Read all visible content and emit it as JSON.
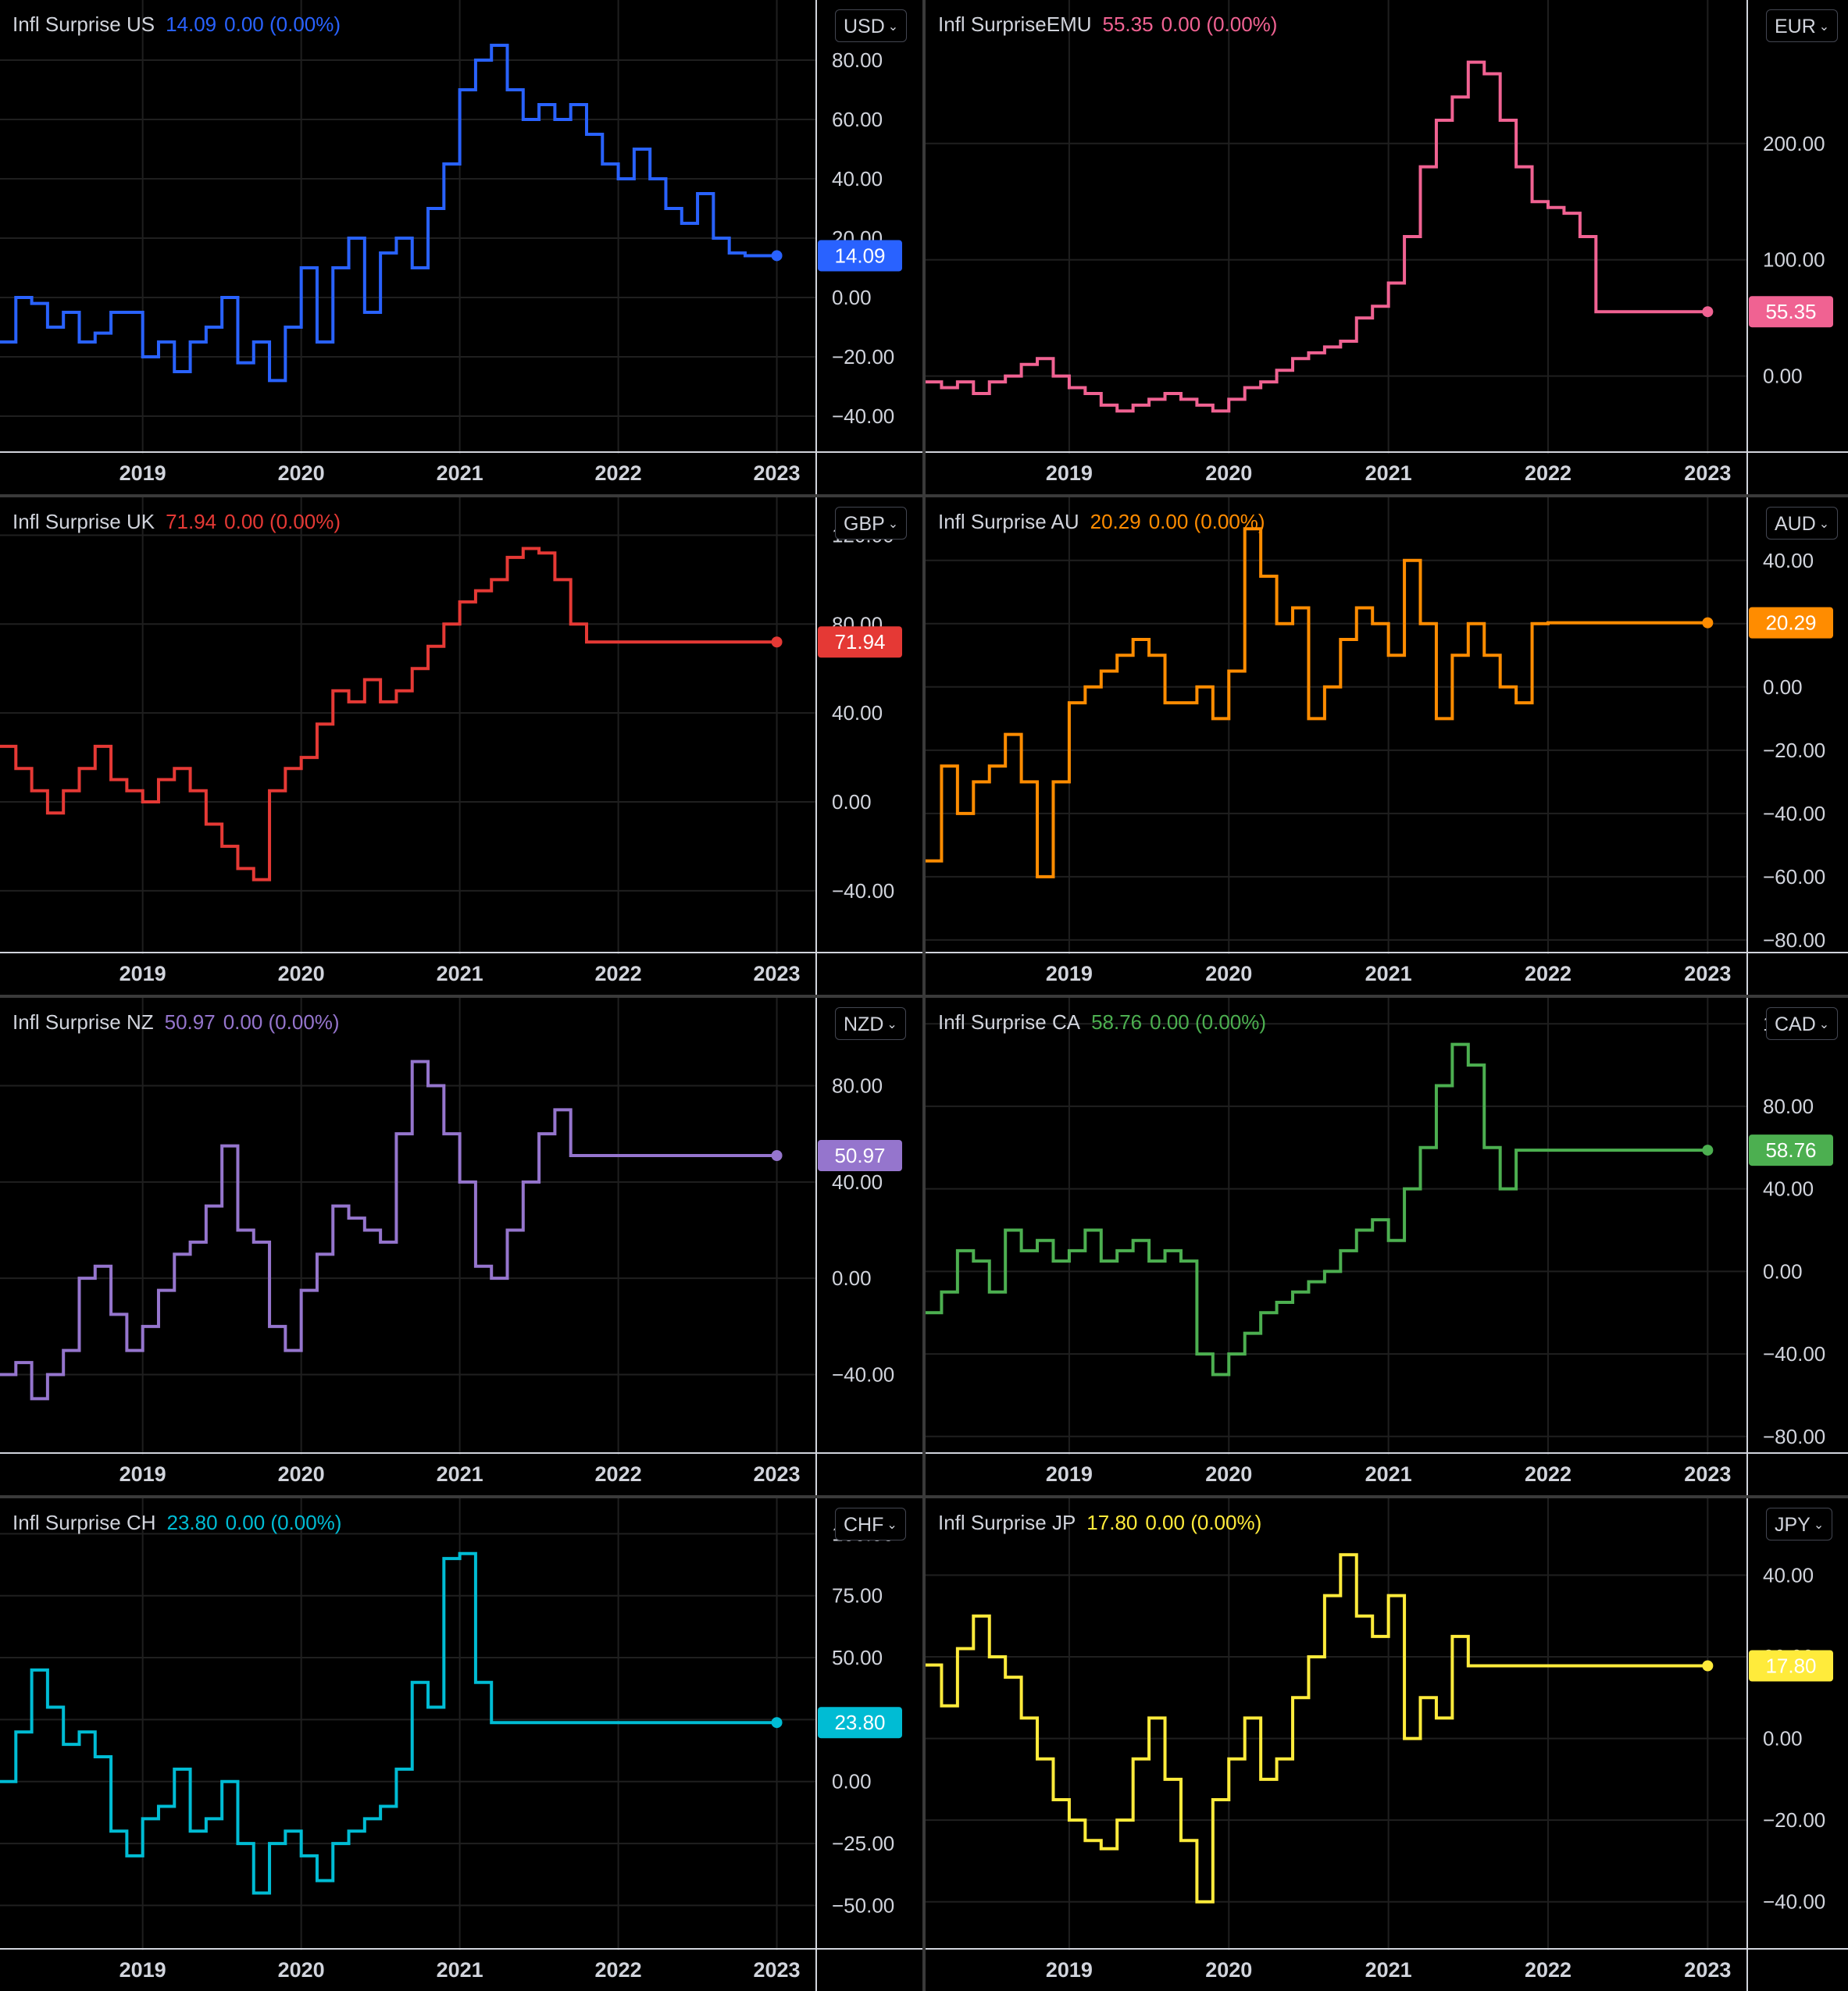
{
  "charts": [
    {
      "id": "us",
      "title": "Infl Surprise US",
      "last": "14.09",
      "change": "0.00 (0.00%)",
      "currency": "USD",
      "color": "#2962ff",
      "last_label_bg": "#2962ff",
      "yticks": [
        "80.00",
        "60.00",
        "40.00",
        "20.00",
        "0.00",
        "−20.00",
        "−40.00"
      ],
      "xticks": [
        "2019",
        "2020",
        "2021",
        "2022",
        "2023"
      ],
      "chart_data": {
        "type": "line",
        "ylim": [
          -50,
          95
        ],
        "xlim": [
          2018.1,
          2023.15
        ],
        "yticks": [
          80,
          60,
          40,
          20,
          0,
          -20,
          -40
        ],
        "x": [
          2018.1,
          2018.2,
          2018.3,
          2018.4,
          2018.5,
          2018.6,
          2018.7,
          2018.8,
          2018.9,
          2019.0,
          2019.1,
          2019.2,
          2019.3,
          2019.4,
          2019.5,
          2019.6,
          2019.7,
          2019.8,
          2019.9,
          2020.0,
          2020.1,
          2020.2,
          2020.3,
          2020.4,
          2020.5,
          2020.6,
          2020.7,
          2020.8,
          2020.9,
          2021.0,
          2021.1,
          2021.2,
          2021.3,
          2021.4,
          2021.5,
          2021.6,
          2021.7,
          2021.8,
          2021.9,
          2022.0,
          2022.1,
          2022.2,
          2022.3,
          2022.4,
          2022.5,
          2022.6,
          2022.7,
          2022.8,
          2022.9,
          2023.0
        ],
        "values": [
          -15,
          0,
          -2,
          -10,
          -5,
          -15,
          -12,
          -5,
          -5,
          -20,
          -15,
          -25,
          -15,
          -10,
          0,
          -22,
          -15,
          -28,
          -10,
          10,
          -15,
          10,
          20,
          -5,
          15,
          20,
          10,
          30,
          45,
          70,
          80,
          85,
          70,
          60,
          65,
          60,
          65,
          55,
          45,
          40,
          50,
          40,
          30,
          25,
          35,
          20,
          15,
          14.09,
          14.09,
          14.09
        ]
      }
    },
    {
      "id": "emu",
      "title": "Infl SurpriseEMU",
      "last": "55.35",
      "change": "0.00 (0.00%)",
      "currency": "EUR",
      "color": "#f06292",
      "last_label_bg": "#f06292",
      "yticks": [
        "200.00",
        "100.00",
        "0.00"
      ],
      "xticks": [
        "2019",
        "2020",
        "2021",
        "2022",
        "2023"
      ],
      "chart_data": {
        "type": "line",
        "ylim": [
          -60,
          310
        ],
        "xlim": [
          2018.1,
          2023.15
        ],
        "yticks": [
          200,
          100,
          0
        ],
        "x": [
          2018.1,
          2018.2,
          2018.3,
          2018.4,
          2018.5,
          2018.6,
          2018.7,
          2018.8,
          2018.9,
          2019.0,
          2019.1,
          2019.2,
          2019.3,
          2019.4,
          2019.5,
          2019.6,
          2019.7,
          2019.8,
          2019.9,
          2020.0,
          2020.1,
          2020.2,
          2020.3,
          2020.4,
          2020.5,
          2020.6,
          2020.7,
          2020.8,
          2020.9,
          2021.0,
          2021.1,
          2021.2,
          2021.3,
          2021.4,
          2021.5,
          2021.6,
          2021.7,
          2021.8,
          2021.9,
          2022.0,
          2022.1,
          2022.2,
          2022.3,
          2022.4,
          2022.5,
          2022.6,
          2022.7,
          2022.8,
          2022.9,
          2023.0
        ],
        "values": [
          -5,
          -10,
          -5,
          -15,
          -5,
          0,
          10,
          15,
          0,
          -10,
          -15,
          -25,
          -30,
          -25,
          -20,
          -15,
          -20,
          -25,
          -30,
          -20,
          -10,
          -5,
          5,
          15,
          20,
          25,
          30,
          50,
          60,
          80,
          120,
          180,
          220,
          240,
          270,
          260,
          220,
          180,
          150,
          145,
          140,
          120,
          55.35,
          55.35,
          55.35,
          55.35,
          55.35,
          55.35,
          55.35,
          55.35
        ]
      }
    },
    {
      "id": "uk",
      "title": "Infl Surprise UK",
      "last": "71.94",
      "change": "0.00 (0.00%)",
      "currency": "GBP",
      "color": "#e53935",
      "last_label_bg": "#e53935",
      "yticks": [
        "120.00",
        "80.00",
        "40.00",
        "0.00",
        "−40.00"
      ],
      "xticks": [
        "2019",
        "2020",
        "2021",
        "2022",
        "2023"
      ],
      "chart_data": {
        "type": "line",
        "ylim": [
          -65,
          130
        ],
        "xlim": [
          2018.1,
          2023.15
        ],
        "yticks": [
          120,
          80,
          40,
          0,
          -40
        ],
        "x": [
          2018.1,
          2018.2,
          2018.3,
          2018.4,
          2018.5,
          2018.6,
          2018.7,
          2018.8,
          2018.9,
          2019.0,
          2019.1,
          2019.2,
          2019.3,
          2019.4,
          2019.5,
          2019.6,
          2019.7,
          2019.8,
          2019.9,
          2020.0,
          2020.1,
          2020.2,
          2020.3,
          2020.4,
          2020.5,
          2020.6,
          2020.7,
          2020.8,
          2020.9,
          2021.0,
          2021.1,
          2021.2,
          2021.3,
          2021.4,
          2021.5,
          2021.6,
          2021.7,
          2021.8,
          2021.9,
          2022.0,
          2022.1,
          2022.2,
          2022.3,
          2022.4,
          2022.5,
          2022.6,
          2022.7,
          2022.8,
          2022.9,
          2023.0
        ],
        "values": [
          25,
          15,
          5,
          -5,
          5,
          15,
          25,
          10,
          5,
          0,
          10,
          15,
          5,
          -10,
          -20,
          -30,
          -35,
          5,
          15,
          20,
          35,
          50,
          45,
          55,
          45,
          50,
          60,
          70,
          80,
          90,
          95,
          100,
          110,
          114,
          112,
          100,
          80,
          71.94,
          71.94,
          71.94,
          71.94,
          71.94,
          71.94,
          71.94,
          71.94,
          71.94,
          71.94,
          71.94,
          71.94,
          71.94
        ]
      }
    },
    {
      "id": "au",
      "title": "Infl Surprise AU",
      "last": "20.29",
      "change": "0.00 (0.00%)",
      "currency": "AUD",
      "color": "#ff8c00",
      "last_label_bg": "#ff8c00",
      "yticks": [
        "40.00",
        "20.00",
        "0.00",
        "−20.00",
        "−40.00",
        "−60.00",
        "−80.00"
      ],
      "xticks": [
        "2019",
        "2020",
        "2021",
        "2022",
        "2023"
      ],
      "chart_data": {
        "type": "line",
        "ylim": [
          -82,
          55
        ],
        "xlim": [
          2018.1,
          2023.15
        ],
        "yticks": [
          40,
          20,
          0,
          -20,
          -40,
          -60,
          -80
        ],
        "x": [
          2018.1,
          2018.2,
          2018.3,
          2018.4,
          2018.5,
          2018.6,
          2018.7,
          2018.8,
          2018.9,
          2019.0,
          2019.1,
          2019.2,
          2019.3,
          2019.4,
          2019.5,
          2019.6,
          2019.7,
          2019.8,
          2019.9,
          2020.0,
          2020.1,
          2020.2,
          2020.3,
          2020.4,
          2020.5,
          2020.6,
          2020.7,
          2020.8,
          2020.9,
          2021.0,
          2021.1,
          2021.2,
          2021.3,
          2021.4,
          2021.5,
          2021.6,
          2021.7,
          2021.8,
          2021.9,
          2022.0,
          2022.1,
          2022.2,
          2022.3,
          2022.4,
          2022.5,
          2022.6,
          2022.7,
          2022.8,
          2022.9,
          2023.0
        ],
        "values": [
          -55,
          -25,
          -40,
          -30,
          -25,
          -15,
          -30,
          -60,
          -30,
          -5,
          0,
          5,
          10,
          15,
          10,
          -5,
          -5,
          0,
          -10,
          5,
          50,
          35,
          20,
          25,
          -10,
          0,
          15,
          25,
          20,
          10,
          40,
          20,
          -10,
          10,
          20,
          10,
          0,
          -5,
          20,
          20.29,
          20.29,
          20.29,
          20.29,
          20.29,
          20.29,
          20.29,
          20.29,
          20.29,
          20.29,
          20.29
        ]
      }
    },
    {
      "id": "nz",
      "title": "Infl Surprise NZ",
      "last": "50.97",
      "change": "0.00 (0.00%)",
      "currency": "NZD",
      "color": "#9575cd",
      "last_label_bg": "#9575cd",
      "yticks": [
        "80.00",
        "40.00",
        "0.00",
        "−40.00"
      ],
      "xticks": [
        "2019",
        "2020",
        "2021",
        "2022",
        "2023"
      ],
      "chart_data": {
        "type": "line",
        "ylim": [
          -70,
          110
        ],
        "xlim": [
          2018.1,
          2023.15
        ],
        "yticks": [
          80,
          40,
          0,
          -40
        ],
        "x": [
          2018.1,
          2018.2,
          2018.3,
          2018.4,
          2018.5,
          2018.6,
          2018.7,
          2018.8,
          2018.9,
          2019.0,
          2019.1,
          2019.2,
          2019.3,
          2019.4,
          2019.5,
          2019.6,
          2019.7,
          2019.8,
          2019.9,
          2020.0,
          2020.1,
          2020.2,
          2020.3,
          2020.4,
          2020.5,
          2020.6,
          2020.7,
          2020.8,
          2020.9,
          2021.0,
          2021.1,
          2021.2,
          2021.3,
          2021.4,
          2021.5,
          2021.6,
          2021.7,
          2021.8,
          2021.9,
          2022.0,
          2022.1,
          2022.2,
          2022.3,
          2022.4,
          2022.5,
          2022.6,
          2022.7,
          2022.8,
          2022.9,
          2023.0
        ],
        "values": [
          -40,
          -35,
          -50,
          -40,
          -30,
          0,
          5,
          -15,
          -30,
          -20,
          -5,
          10,
          15,
          30,
          55,
          20,
          15,
          -20,
          -30,
          -5,
          10,
          30,
          25,
          20,
          15,
          60,
          90,
          80,
          60,
          40,
          5,
          0,
          20,
          40,
          60,
          70,
          50.97,
          50.97,
          50.97,
          50.97,
          50.97,
          50.97,
          50.97,
          50.97,
          50.97,
          50.97,
          50.97,
          50.97,
          50.97,
          50.97
        ]
      }
    },
    {
      "id": "ca",
      "title": "Infl Surprise CA",
      "last": "58.76",
      "change": "0.00 (0.00%)",
      "currency": "CAD",
      "color": "#4caf50",
      "last_label_bg": "#4caf50",
      "yticks": [
        "120.00",
        "80.00",
        "40.00",
        "0.00",
        "−40.00",
        "−80.00"
      ],
      "xticks": [
        "2019",
        "2020",
        "2021",
        "2022",
        "2023"
      ],
      "chart_data": {
        "type": "line",
        "ylim": [
          -85,
          125
        ],
        "xlim": [
          2018.1,
          2023.15
        ],
        "yticks": [
          120,
          80,
          40,
          0,
          -40,
          -80
        ],
        "x": [
          2018.1,
          2018.2,
          2018.3,
          2018.4,
          2018.5,
          2018.6,
          2018.7,
          2018.8,
          2018.9,
          2019.0,
          2019.1,
          2019.2,
          2019.3,
          2019.4,
          2019.5,
          2019.6,
          2019.7,
          2019.8,
          2019.9,
          2020.0,
          2020.1,
          2020.2,
          2020.3,
          2020.4,
          2020.5,
          2020.6,
          2020.7,
          2020.8,
          2020.9,
          2021.0,
          2021.1,
          2021.2,
          2021.3,
          2021.4,
          2021.5,
          2021.6,
          2021.7,
          2021.8,
          2021.9,
          2022.0,
          2022.1,
          2022.2,
          2022.3,
          2022.4,
          2022.5,
          2022.6,
          2022.7,
          2022.8,
          2022.9,
          2023.0
        ],
        "values": [
          -20,
          -10,
          10,
          5,
          -10,
          20,
          10,
          15,
          5,
          10,
          20,
          5,
          10,
          15,
          5,
          10,
          5,
          -40,
          -50,
          -40,
          -30,
          -20,
          -15,
          -10,
          -5,
          0,
          10,
          20,
          25,
          15,
          40,
          60,
          90,
          110,
          100,
          60,
          40,
          58.76,
          58.76,
          58.76,
          58.76,
          58.76,
          58.76,
          58.76,
          58.76,
          58.76,
          58.76,
          58.76,
          58.76,
          58.76
        ]
      }
    },
    {
      "id": "ch",
      "title": "Infl Surprise CH",
      "last": "23.80",
      "change": "0.00 (0.00%)",
      "currency": "CHF",
      "color": "#00bcd4",
      "last_label_bg": "#00bcd4",
      "yticks": [
        "100.00",
        "75.00",
        "50.00",
        "25.00",
        "0.00",
        "−25.00",
        "−50.00"
      ],
      "xticks": [
        "2019",
        "2020",
        "2021",
        "2022",
        "2023"
      ],
      "chart_data": {
        "type": "line",
        "ylim": [
          -65,
          108
        ],
        "xlim": [
          2018.1,
          2023.15
        ],
        "yticks": [
          100,
          75,
          50,
          25,
          0,
          -25,
          -50
        ],
        "x": [
          2018.1,
          2018.2,
          2018.3,
          2018.4,
          2018.5,
          2018.6,
          2018.7,
          2018.8,
          2018.9,
          2019.0,
          2019.1,
          2019.2,
          2019.3,
          2019.4,
          2019.5,
          2019.6,
          2019.7,
          2019.8,
          2019.9,
          2020.0,
          2020.1,
          2020.2,
          2020.3,
          2020.4,
          2020.5,
          2020.6,
          2020.7,
          2020.8,
          2020.9,
          2021.0,
          2021.1,
          2021.2,
          2021.3,
          2021.4,
          2021.5,
          2021.6,
          2021.7,
          2021.8,
          2021.9,
          2022.0,
          2022.1,
          2022.2,
          2022.3,
          2022.4,
          2022.5,
          2022.6,
          2022.7,
          2022.8,
          2022.9,
          2023.0
        ],
        "values": [
          0,
          20,
          45,
          30,
          15,
          20,
          10,
          -20,
          -30,
          -15,
          -10,
          5,
          -20,
          -15,
          0,
          -25,
          -45,
          -25,
          -20,
          -30,
          -40,
          -25,
          -20,
          -15,
          -10,
          5,
          40,
          30,
          90,
          92,
          40,
          23.8,
          23.8,
          23.8,
          23.8,
          23.8,
          23.8,
          23.8,
          23.8,
          23.8,
          23.8,
          23.8,
          23.8,
          23.8,
          23.8,
          23.8,
          23.8,
          23.8,
          23.8,
          23.8
        ]
      }
    },
    {
      "id": "jp",
      "title": "Infl Surprise JP",
      "last": "17.80",
      "change": "0.00 (0.00%)",
      "currency": "JPY",
      "color": "#ffeb3b",
      "last_label_bg": "#ffeb3b",
      "yticks": [
        "40.00",
        "20.00",
        "0.00",
        "−20.00",
        "−40.00"
      ],
      "xticks": [
        "2019",
        "2020",
        "2021",
        "2022",
        "2023"
      ],
      "chart_data": {
        "type": "line",
        "ylim": [
          -50,
          55
        ],
        "xlim": [
          2018.1,
          2023.15
        ],
        "yticks": [
          40,
          20,
          0,
          -20,
          -40
        ],
        "x": [
          2018.1,
          2018.2,
          2018.3,
          2018.4,
          2018.5,
          2018.6,
          2018.7,
          2018.8,
          2018.9,
          2019.0,
          2019.1,
          2019.2,
          2019.3,
          2019.4,
          2019.5,
          2019.6,
          2019.7,
          2019.8,
          2019.9,
          2020.0,
          2020.1,
          2020.2,
          2020.3,
          2020.4,
          2020.5,
          2020.6,
          2020.7,
          2020.8,
          2020.9,
          2021.0,
          2021.1,
          2021.2,
          2021.3,
          2021.4,
          2021.5,
          2021.6,
          2021.7,
          2021.8,
          2021.9,
          2022.0,
          2022.1,
          2022.2,
          2022.3,
          2022.4,
          2022.5,
          2022.6,
          2022.7,
          2022.8,
          2022.9,
          2023.0
        ],
        "values": [
          18,
          8,
          22,
          30,
          20,
          15,
          5,
          -5,
          -15,
          -20,
          -25,
          -27,
          -20,
          -5,
          5,
          -10,
          -25,
          -40,
          -15,
          -5,
          5,
          -10,
          -5,
          10,
          20,
          35,
          45,
          30,
          25,
          35,
          0,
          10,
          5,
          25,
          17.8,
          17.8,
          17.8,
          17.8,
          17.8,
          17.8,
          17.8,
          17.8,
          17.8,
          17.8,
          17.8,
          17.8,
          17.8,
          17.8,
          17.8,
          17.8
        ]
      }
    }
  ]
}
